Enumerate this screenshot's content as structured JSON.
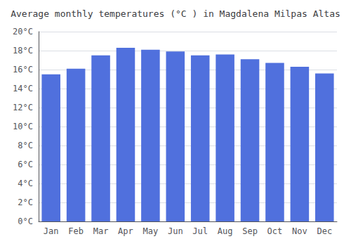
{
  "chart_data": {
    "type": "bar",
    "title": "Average monthly temperatures (°C ) in Magdalena Milpas Altas",
    "categories": [
      "Jan",
      "Feb",
      "Mar",
      "Apr",
      "May",
      "Jun",
      "Jul",
      "Aug",
      "Sep",
      "Oct",
      "Nov",
      "Dec"
    ],
    "values": [
      15.5,
      16.1,
      17.5,
      18.3,
      18.1,
      17.9,
      17.5,
      17.6,
      17.1,
      16.7,
      16.3,
      15.6
    ],
    "ylim": [
      0,
      20
    ],
    "yticks": [
      {
        "value": 0,
        "label": "0°C"
      },
      {
        "value": 2,
        "label": "2°C"
      },
      {
        "value": 4,
        "label": "4°C"
      },
      {
        "value": 6,
        "label": "6°C"
      },
      {
        "value": 8,
        "label": "8°C"
      },
      {
        "value": 10,
        "label": "10°C"
      },
      {
        "value": 12,
        "label": "12°C"
      },
      {
        "value": 14,
        "label": "14°C"
      },
      {
        "value": 16,
        "label": "16°C"
      },
      {
        "value": 18,
        "label": "18°C"
      },
      {
        "value": 20,
        "label": "20°C"
      }
    ],
    "grid": true
  }
}
